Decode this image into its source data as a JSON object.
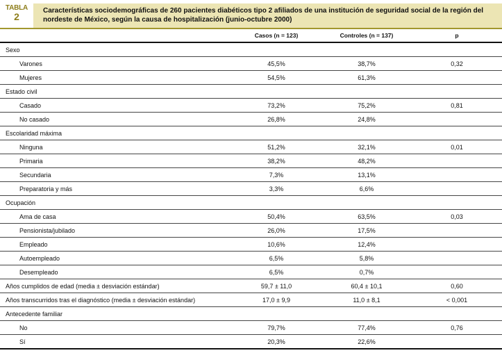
{
  "header": {
    "label_word": "TABLA",
    "label_number": "2",
    "title": "Características sociodemográficas de 260 pacientes diabéticos tipo 2 afiliados de una institución de seguridad social de la región del nordeste de México, según la causa de hospitalización (junio-octubre 2000)"
  },
  "columns": {
    "casos": "Casos (n = 123)",
    "controles": "Controles (n = 137)",
    "p": "p"
  },
  "rows": [
    {
      "type": "section",
      "label": "Sexo",
      "casos": "",
      "controles": "",
      "p": ""
    },
    {
      "type": "item",
      "label": "Varones",
      "casos": "45,5%",
      "controles": "38,7%",
      "p": "0,32"
    },
    {
      "type": "item",
      "label": "Mujeres",
      "casos": "54,5%",
      "controles": "61,3%",
      "p": ""
    },
    {
      "type": "section",
      "label": "Estado civil",
      "casos": "",
      "controles": "",
      "p": ""
    },
    {
      "type": "item",
      "label": "Casado",
      "casos": "73,2%",
      "controles": "75,2%",
      "p": "0,81"
    },
    {
      "type": "item",
      "label": "No casado",
      "casos": "26,8%",
      "controles": "24,8%",
      "p": ""
    },
    {
      "type": "section",
      "label": "Escolaridad máxima",
      "casos": "",
      "controles": "",
      "p": ""
    },
    {
      "type": "item",
      "label": "Ninguna",
      "casos": "51,2%",
      "controles": "32,1%",
      "p": "0,01"
    },
    {
      "type": "item",
      "label": "Primaria",
      "casos": "38,2%",
      "controles": "48,2%",
      "p": ""
    },
    {
      "type": "item",
      "label": "Secundaria",
      "casos": "7,3%",
      "controles": "13,1%",
      "p": ""
    },
    {
      "type": "item",
      "label": "Preparatoria y más",
      "casos": "3,3%",
      "controles": "6,6%",
      "p": ""
    },
    {
      "type": "section",
      "label": "Ocupación",
      "casos": "",
      "controles": "",
      "p": ""
    },
    {
      "type": "item",
      "label": "Ama de casa",
      "casos": "50,4%",
      "controles": "63,5%",
      "p": "0,03"
    },
    {
      "type": "item",
      "label": "Pensionista/jubilado",
      "casos": "26,0%",
      "controles": "17,5%",
      "p": ""
    },
    {
      "type": "item",
      "label": "Empleado",
      "casos": "10,6%",
      "controles": "12,4%",
      "p": ""
    },
    {
      "type": "item",
      "label": "Autoempleado",
      "casos": "6,5%",
      "controles": "5,8%",
      "p": ""
    },
    {
      "type": "item",
      "label": "Desempleado",
      "casos": "6,5%",
      "controles": "0,7%",
      "p": ""
    },
    {
      "type": "data",
      "label": "Años cumplidos de edad (media ± desviación estándar)",
      "casos": "59,7 ± 11,0",
      "controles": "60,4 ± 10,1",
      "p": "0,60"
    },
    {
      "type": "data",
      "label": "Años transcurridos tras el diagnóstico (media ± desviación estándar)",
      "casos": "17,0 ± 9,9",
      "controles": "11,0 ± 8,1",
      "p": "< 0,001"
    },
    {
      "type": "section",
      "label": "Antecedente familiar",
      "casos": "",
      "controles": "",
      "p": ""
    },
    {
      "type": "item",
      "label": "No",
      "casos": "79,7%",
      "controles": "77,4%",
      "p": "0,76"
    },
    {
      "type": "item",
      "label": "Sí",
      "casos": "20,3%",
      "controles": "22,6%",
      "p": ""
    }
  ],
  "colors": {
    "accent_olive_text": "#8e7e1b",
    "accent_olive_rule": "#a2972e",
    "title_band_background": "#ece5b4",
    "rule_heavy": "#111111",
    "rule_light": "#454545",
    "text": "#111111"
  }
}
